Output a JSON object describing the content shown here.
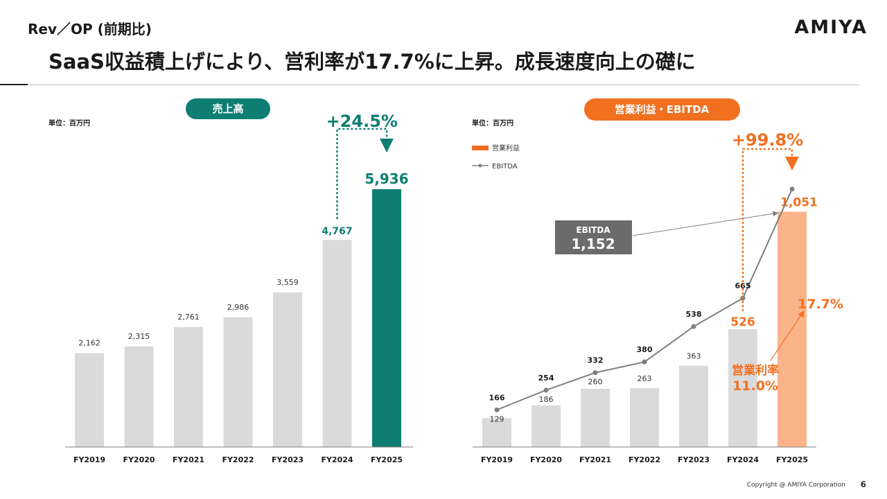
{
  "header": {
    "subtitle": "Rev／OP (前期比)",
    "logo": "AMIYA",
    "headline": "SaaS収益積上げにより、営利率が17.7%に上昇。成長速度向上の礎に"
  },
  "footer": {
    "copyright": "Copyright @ AMIYA Corporation",
    "page_number": "6"
  },
  "colors": {
    "teal": "#0e7e72",
    "orange": "#f07020",
    "light_orange": "#fbb48a",
    "gray_bar": "#dadada",
    "line_gray": "#7f7f7f",
    "ebitda_box": "#6b6b6b"
  },
  "chart_data": [
    {
      "type": "bar",
      "title": "売上高",
      "unit_label": "単位：百万円",
      "categories": [
        "FY2019",
        "FY2020",
        "FY2021",
        "FY2022",
        "FY2023",
        "FY2024",
        "FY2025"
      ],
      "values": [
        2162,
        2315,
        2761,
        2986,
        3559,
        4767,
        5936
      ],
      "value_labels": [
        "2,162",
        "2,315",
        "2,761",
        "2,986",
        "3,559",
        "4,767",
        "5,936"
      ],
      "ylim": [
        0,
        6700
      ],
      "highlight_index": 6,
      "growth_label": "+24.5%"
    },
    {
      "type": "bar+line",
      "title": "営業利益・EBITDA",
      "unit_label": "単位：百万円",
      "categories": [
        "FY2019",
        "FY2020",
        "FY2021",
        "FY2022",
        "FY2023",
        "FY2024",
        "FY2025"
      ],
      "series": [
        {
          "name": "営業利益",
          "type": "bar",
          "values": [
            129,
            186,
            260,
            263,
            363,
            526,
            1051
          ],
          "value_labels": [
            "129",
            "186",
            "260",
            "263",
            "363",
            "526",
            "1,051"
          ]
        },
        {
          "name": "EBITDA",
          "type": "line",
          "values": [
            166,
            254,
            332,
            380,
            538,
            665,
            1152
          ],
          "value_labels": [
            "166",
            "254",
            "332",
            "380",
            "538",
            "665"
          ]
        }
      ],
      "ylim": [
        0,
        1300
      ],
      "growth_label": "+99.8%",
      "ebitda_callout": {
        "label": "EBITDA",
        "value": "1,152"
      },
      "margin_current": "17.7%",
      "margin_previous": {
        "label": "営業利率",
        "value": "11.0%"
      }
    }
  ]
}
